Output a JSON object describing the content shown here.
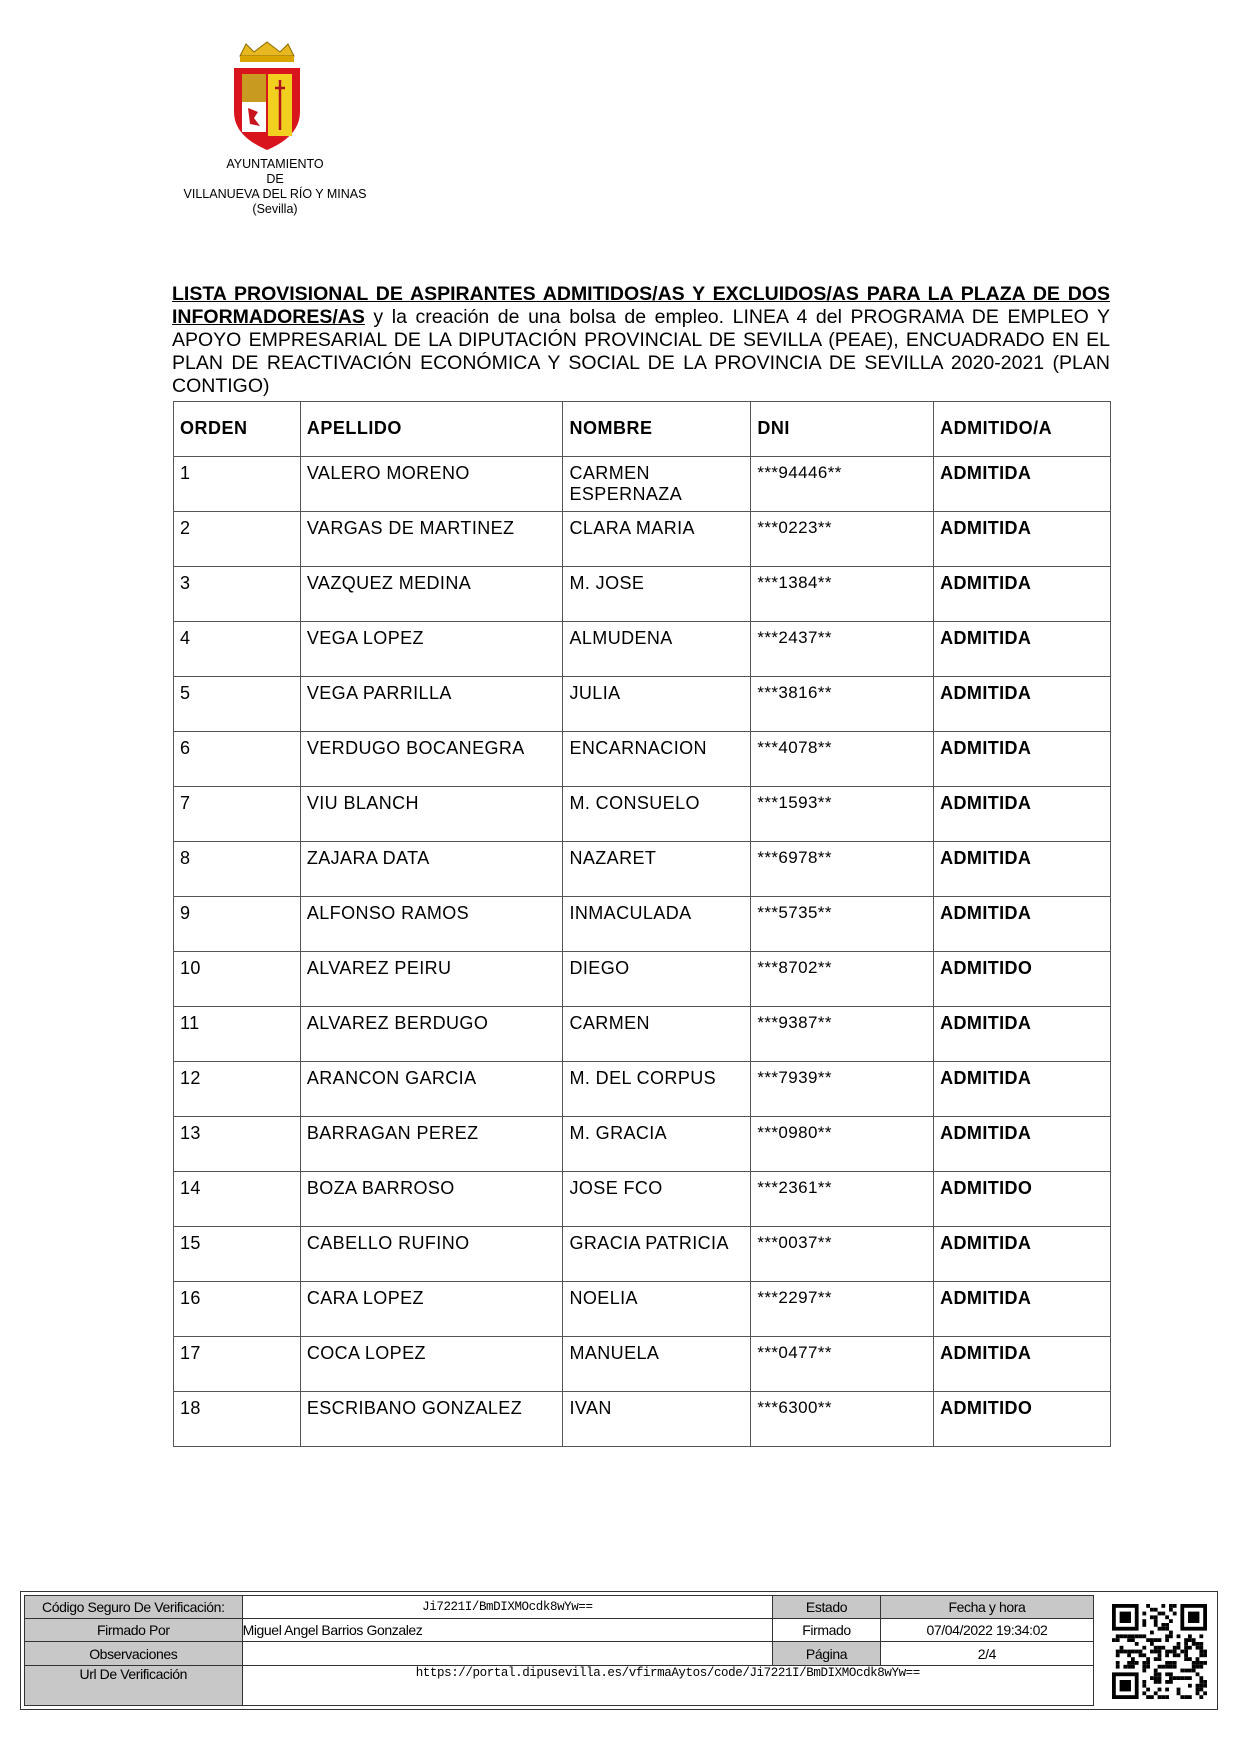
{
  "header": {
    "org_lines": [
      "AYUNTAMIENTO",
      "DE",
      "VILLANUEVA  DEL  RÍO Y MINAS",
      "(Sevilla)"
    ],
    "logo_icon": "coat-of-arms-icon"
  },
  "title": {
    "underlined": "LISTA PROVISIONAL DE ASPIRANTES ADMITIDOS/AS Y EXCLUIDOS/AS PARA LA PLAZA DE DOS INFORMADORES/AS",
    "rest": " y la creación de una bolsa de empleo. LINEA 4 del  PROGRAMA DE EMPLEO Y APOYO EMPRESARIAL DE LA DIPUTACIÓN PROVINCIAL DE SEVILLA (PEAE), ENCUADRADO EN EL PLAN DE REACTIVACIÓN ECONÓMICA Y SOCIAL DE LA PROVINCIA DE SEVILLA 2020-2021 (PLAN CONTIGO)"
  },
  "table": {
    "columns": [
      "ORDEN",
      "APELLIDO",
      "NOMBRE",
      "DNI",
      "ADMITIDO/A"
    ],
    "rows": [
      [
        "1",
        "VALERO MORENO",
        "CARMEN ESPERNAZA",
        "***94446**",
        "ADMITIDA"
      ],
      [
        "2",
        "VARGAS DE MARTINEZ",
        "CLARA MARIA",
        "***0223**",
        "ADMITIDA"
      ],
      [
        "3",
        "VAZQUEZ MEDINA",
        "M. JOSE",
        "***1384**",
        "ADMITIDA"
      ],
      [
        "4",
        "VEGA LOPEZ",
        "ALMUDENA",
        "***2437**",
        "ADMITIDA"
      ],
      [
        "5",
        "VEGA PARRILLA",
        "JULIA",
        "***3816**",
        "ADMITIDA"
      ],
      [
        "6",
        "VERDUGO BOCANEGRA",
        " ENCARNACION",
        "***4078**",
        "ADMITIDA"
      ],
      [
        "7",
        "VIU BLANCH",
        "M. CONSUELO",
        "***1593**",
        "ADMITIDA"
      ],
      [
        "8",
        "ZAJARA DATA",
        "NAZARET",
        "***6978**",
        "ADMITIDA"
      ],
      [
        "9",
        "ALFONSO RAMOS",
        "INMACULADA",
        "***5735**",
        "ADMITIDA"
      ],
      [
        "10",
        "ALVAREZ PEIRU",
        "DIEGO",
        "***8702**",
        "ADMITIDO"
      ],
      [
        "11",
        "ALVAREZ BERDUGO",
        "CARMEN",
        "***9387**",
        "ADMITIDA"
      ],
      [
        "12",
        "ARANCON GARCIA",
        "M. DEL CORPUS",
        "***7939**",
        "ADMITIDA"
      ],
      [
        "13",
        "BARRAGAN PEREZ",
        "M. GRACIA",
        "***0980**",
        "ADMITIDA"
      ],
      [
        "14",
        "BOZA BARROSO",
        "JOSE FCO",
        "***2361**",
        "ADMITIDO"
      ],
      [
        "15",
        "CABELLO RUFINO",
        "GRACIA PATRICIA",
        "***0037**",
        "ADMITIDA"
      ],
      [
        "16",
        "CARA LOPEZ",
        "NOELIA",
        "***2297**",
        "ADMITIDA"
      ],
      [
        "17",
        "COCA LOPEZ",
        "MANUELA",
        "***0477**",
        "ADMITIDA"
      ],
      [
        "18",
        "ESCRIBANO GONZALEZ",
        "IVAN",
        "***6300**",
        "ADMITIDO"
      ]
    ]
  },
  "footer": {
    "csv_label": "Código Seguro De Verificación:",
    "csv_value": "Ji7221I/BmDIXMOcdk8wYw==",
    "estado_label": "Estado",
    "fecha_label": "Fecha y hora",
    "firmado_por_label": "Firmado Por",
    "firmado_por_value": "Miguel Angel Barrios Gonzalez",
    "estado_value": "Firmado",
    "fecha_value": "07/04/2022 19:34:02",
    "observaciones_label": "Observaciones",
    "pagina_label": "Página",
    "pagina_value": "2/4",
    "url_label": "Url De Verificación",
    "url_value": "https://portal.dipusevilla.es/vfirmaAytos/code/Ji7221I/BmDIXMOcdk8wYw==",
    "qr_icon": "qr-code-icon"
  }
}
